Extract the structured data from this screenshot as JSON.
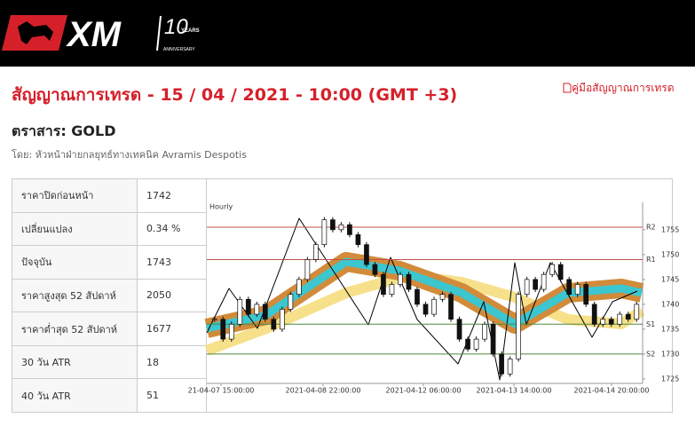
{
  "header": {
    "logo": "XM",
    "anniversary_number": "10",
    "anniversary_years": "YEARS",
    "anniversary_label": "ANNIVERSARY"
  },
  "title": "สัญญาณการเทรด - 15 / 04 / 2021 - 10:00 (GMT +3)",
  "guide_link": "คู่มือสัญญาณการเทรด",
  "instrument": "ตราสาร: GOLD",
  "author": "โดย: หัวหน้าฝ่ายกลยุทธ์ทางเทคนิค Avramis Despotis",
  "table": {
    "rows": [
      [
        "ราคาปิดก่อนหน้า",
        "1742"
      ],
      [
        "เปลี่ยนแปลง",
        "0.34 %"
      ],
      [
        "ปัจจุบัน",
        "1743"
      ],
      [
        "ราคาสูงสุด 52 สัปดาห์",
        "2050"
      ],
      [
        "ราคาต่ำสุด 52 สัปดาห์",
        "1677"
      ],
      [
        "30 วัน ATR",
        "18"
      ],
      [
        "40 วัน ATR",
        "51"
      ]
    ]
  },
  "chart_data": {
    "type": "candlestick",
    "subtitle": "Hourly",
    "values": [
      1737,
      1733,
      1736,
      1741,
      1738,
      1740,
      1737,
      1735,
      1739,
      1742,
      1745,
      1749,
      1752,
      1757,
      1755,
      1756,
      1754,
      1752,
      1748,
      1746,
      1742,
      1744,
      1746,
      1743,
      1740,
      1738,
      1741,
      1742,
      1737,
      1733,
      1731,
      1733,
      1736,
      1730,
      1726,
      1729,
      1742,
      1745,
      1743,
      1746,
      1748,
      1745,
      1742,
      1744,
      1740,
      1736,
      1737,
      1736,
      1738,
      1737,
      1740
    ],
    "x_tick_labels": [
      "21-04-07 15:00:00",
      "2021-04-08 22:00:00",
      "2021-04-12 06:00:00",
      "2021-04-13 14:00:00",
      "2021-04-14 20:00:00"
    ],
    "ylim": [
      1724.1,
      1760.5
    ],
    "yticks": [
      1725,
      1730,
      1735,
      1740,
      1745,
      1750,
      1755
    ],
    "levels": [
      {
        "name": "R2",
        "value": 1755.5,
        "color": "#c0504d"
      },
      {
        "name": "R1",
        "value": 1749,
        "color": "#c0504d"
      },
      {
        "name": "S1",
        "value": 1736,
        "color": "#4f8a3c"
      },
      {
        "name": "S2",
        "value": 1730,
        "color": "#4f8a3c"
      }
    ],
    "up_color": "#ffffff",
    "down_color": "#111111"
  }
}
